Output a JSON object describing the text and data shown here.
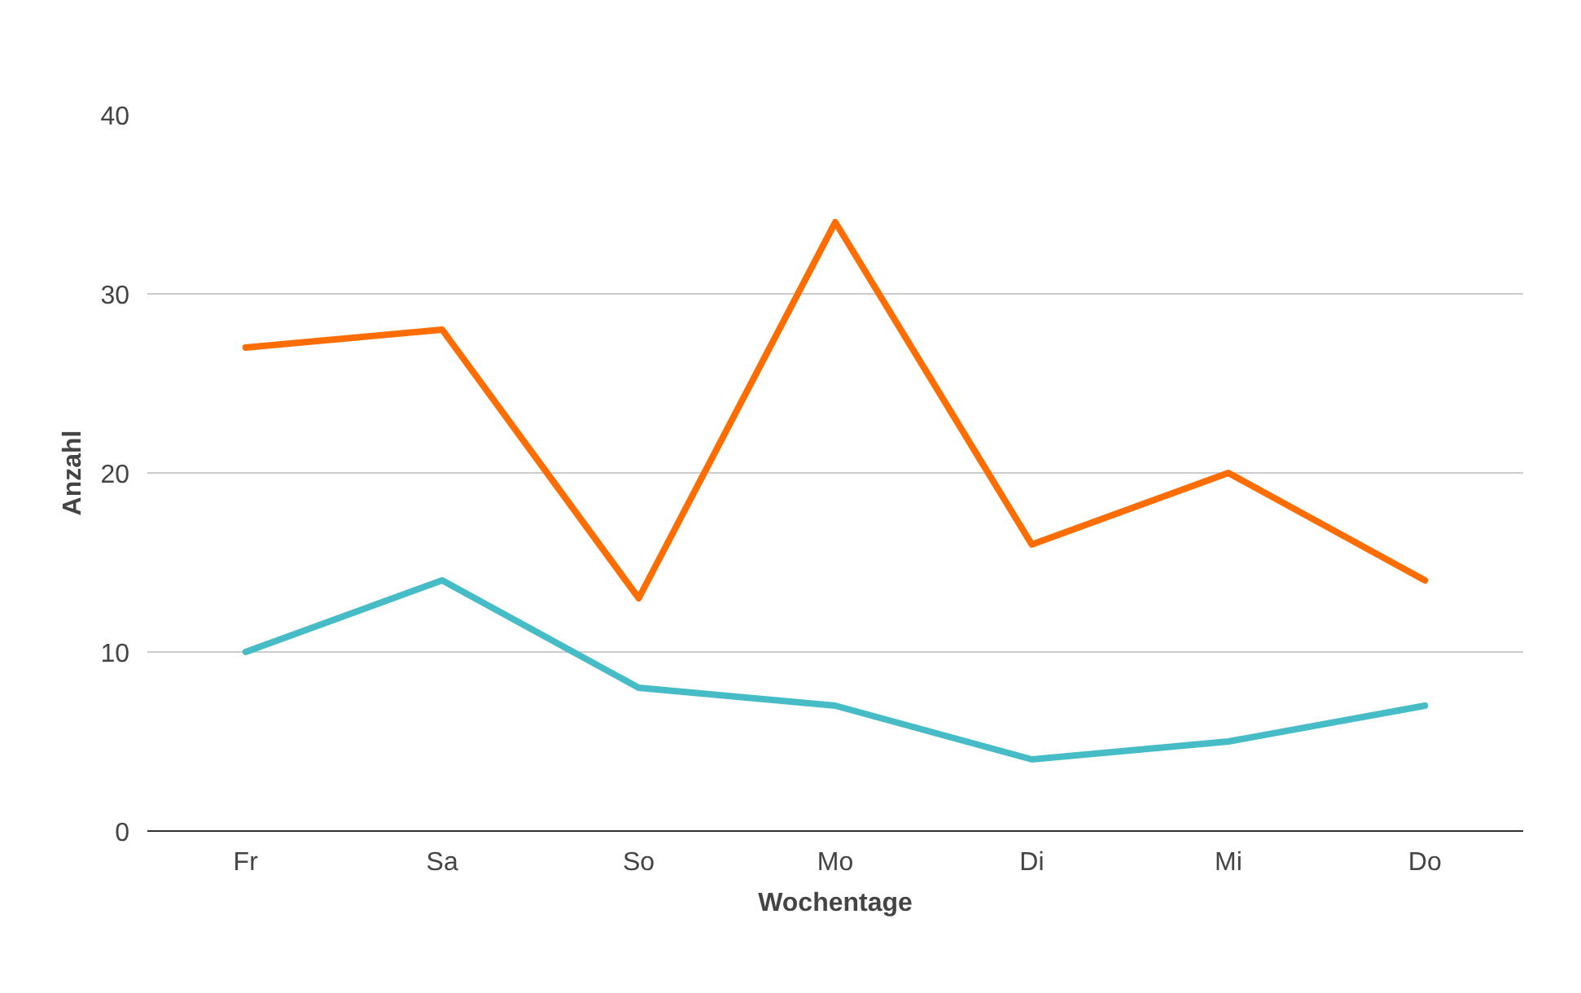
{
  "chart_data": {
    "type": "line",
    "xlabel": "Wochentage",
    "ylabel": "Anzahl",
    "categories": [
      "Fr",
      "Sa",
      "So",
      "Mo",
      "Di",
      "Mi",
      "Do"
    ],
    "series": [
      {
        "color": "#ff6d01",
        "values": [
          27,
          28,
          13,
          34,
          16,
          20,
          14
        ]
      },
      {
        "color": "#46bdc6",
        "values": [
          10,
          14,
          8,
          7,
          4,
          5,
          7
        ]
      }
    ],
    "ylim": [
      0,
      40
    ],
    "yticks": [
      0,
      10,
      20,
      30,
      40
    ],
    "grid": "y",
    "marker": "none",
    "line_style": "solid"
  }
}
